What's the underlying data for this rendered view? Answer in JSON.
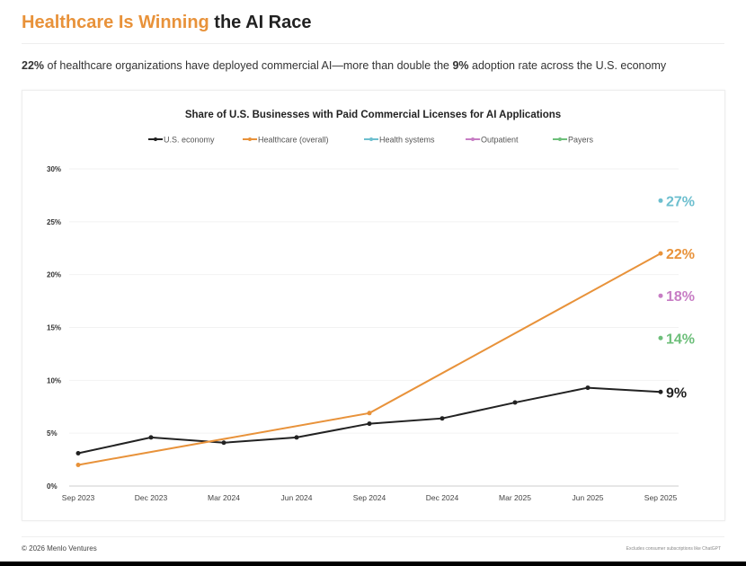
{
  "header": {
    "title_highlight": "Healthcare Is Winning",
    "title_rest": " the AI Race"
  },
  "subtitle": {
    "b1": "22%",
    "t1": " of healthcare organizations have deployed commercial AI—more than double the ",
    "b2": "9%",
    "t2": " adoption rate across the U.S. economy"
  },
  "footer": {
    "left": "© 2026 Menlo Ventures",
    "right": "Excludes consumer subscriptions like ChatGPT"
  },
  "chart_data": {
    "type": "line",
    "title": "Share of U.S. Businesses with Paid Commercial Licenses for AI Applications",
    "categories": [
      "Sep 2023",
      "Dec 2023",
      "Mar 2024",
      "Jun 2024",
      "Sep 2024",
      "Dec 2024",
      "Mar 2025",
      "Jun 2025",
      "Sep 2025"
    ],
    "ylim": [
      0,
      30
    ],
    "yticks": [
      0,
      5,
      10,
      15,
      20,
      25,
      30
    ],
    "ytick_labels": [
      "0%",
      "5%",
      "10%",
      "15%",
      "20%",
      "25%",
      "30%"
    ],
    "grid": true,
    "legend_position": "top",
    "series": [
      {
        "name": "U.S. economy",
        "color": "#222222",
        "values": [
          3.1,
          4.6,
          4.1,
          4.6,
          5.9,
          6.4,
          7.9,
          9.3,
          8.9
        ],
        "end_label": "9%"
      },
      {
        "name": "Healthcare (overall)",
        "color": "#e8923a",
        "values": [
          2.0,
          null,
          null,
          null,
          6.9,
          null,
          null,
          null,
          22
        ],
        "end_label": "22%"
      },
      {
        "name": "Health systems",
        "color": "#6dbfcf",
        "values": [
          null,
          null,
          null,
          null,
          null,
          null,
          null,
          null,
          27
        ],
        "end_label": "27%"
      },
      {
        "name": "Outpatient",
        "color": "#c77dc4",
        "values": [
          null,
          null,
          null,
          null,
          null,
          null,
          null,
          null,
          18
        ],
        "end_label": "18%"
      },
      {
        "name": "Payers",
        "color": "#6dbf7a",
        "values": [
          null,
          null,
          null,
          null,
          null,
          null,
          null,
          null,
          14
        ],
        "end_label": "14%"
      }
    ]
  }
}
